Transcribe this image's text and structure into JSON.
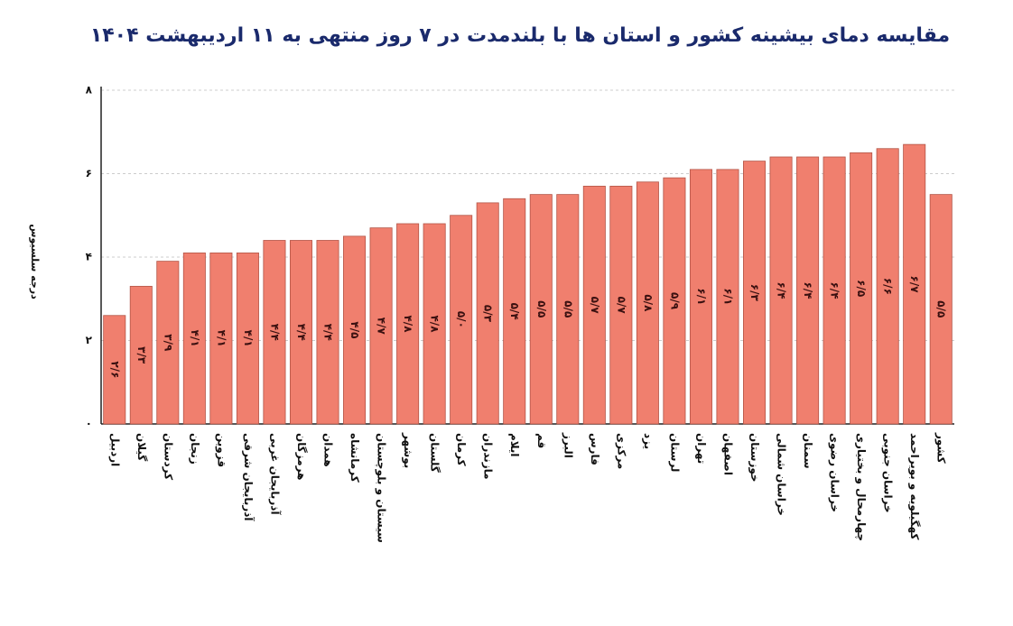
{
  "chart_data": {
    "type": "bar",
    "title": "مقایسه دمای بیشینه کشور و استان ها با بلندمدت در ۷ روز منتهی به ۱۱ اردیبهشت ۱۴۰۴",
    "y_label": "درجه سلسیوس",
    "categories": [
      "اردبیل",
      "گیلان",
      "کردستان",
      "زنجان",
      "قزوین",
      "آذربایجان شرقی",
      "آذربایجان غربی",
      "هرمزگان",
      "همدان",
      "کرمانشاه",
      "سیستان و بلوچستان",
      "بوشهر",
      "گلستان",
      "کرمان",
      "مازندران",
      "ایلام",
      "قم",
      "البرز",
      "فارس",
      "مرکزی",
      "یزد",
      "لرستان",
      "تهران",
      "اصفهان",
      "خوزستان",
      "خراسان شمالی",
      "سمنان",
      "خراسان رضوی",
      "چهارمحال و بختیاری",
      "خراسان جنوبی",
      "کهگیلویه و بویراحمد",
      "کشور"
    ],
    "values": [
      2.6,
      3.3,
      3.9,
      4.1,
      4.1,
      4.1,
      4.4,
      4.4,
      4.4,
      4.5,
      4.7,
      4.8,
      4.8,
      5.0,
      5.3,
      5.4,
      5.5,
      5.5,
      5.7,
      5.7,
      5.8,
      5.9,
      6.1,
      6.1,
      6.3,
      6.4,
      6.4,
      6.4,
      6.5,
      6.6,
      6.7,
      5.5
    ],
    "value_labels": [
      "۲/۶",
      "۳/۳",
      "۳/۹",
      "۴/۱",
      "۴/۱",
      "۴/۱",
      "۴/۴",
      "۴/۴",
      "۴/۴",
      "۴/۵",
      "۴/۷",
      "۴/۸",
      "۴/۸",
      "۵/۰",
      "۵/۳",
      "۵/۴",
      "۵/۵",
      "۵/۵",
      "۵/۷",
      "۵/۷",
      "۵/۸",
      "۵/۹",
      "۶/۱",
      "۶/۱",
      "۶/۳",
      "۶/۴",
      "۶/۴",
      "۶/۴",
      "۶/۵",
      "۶/۶",
      "۶/۷",
      "۵/۵"
    ],
    "color": "#f07f6e",
    "ylim": [
      0,
      8
    ],
    "yticks": [
      {
        "value": 0,
        "label": "۰"
      },
      {
        "value": 2,
        "label": "۲"
      },
      {
        "value": 4,
        "label": "۴"
      },
      {
        "value": 6,
        "label": "۶"
      },
      {
        "value": 8,
        "label": "۸"
      }
    ],
    "grid": true
  }
}
